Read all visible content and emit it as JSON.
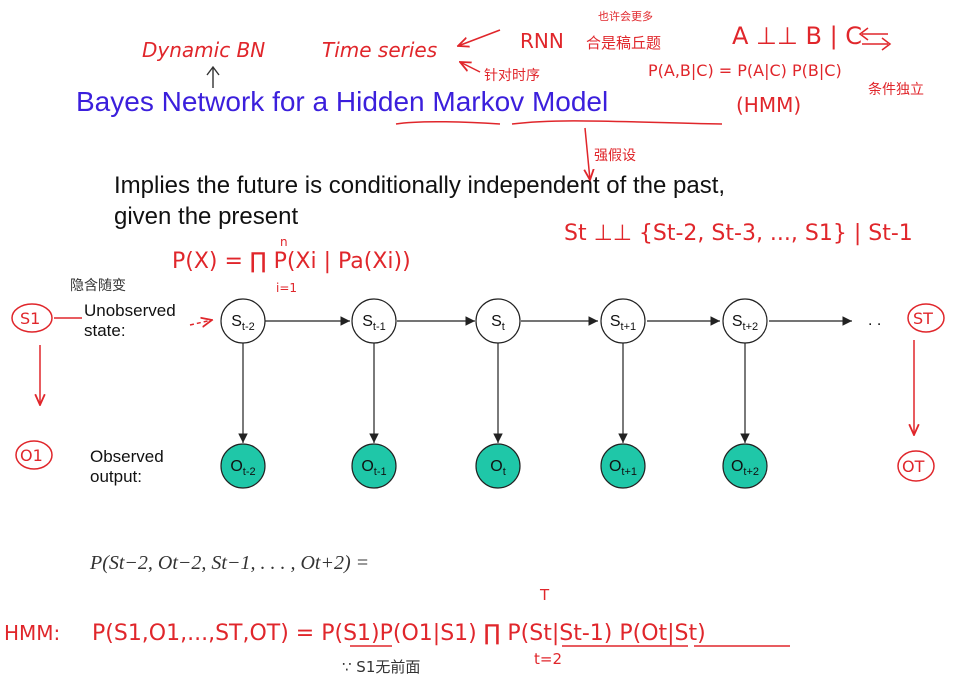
{
  "title": "Bayes Network for a Hidden Markov Model",
  "statement": {
    "line1": "Implies the future is conditionally independent of the past,",
    "line2": "given the present"
  },
  "labels": {
    "unobserved_line1": "Unobserved",
    "unobserved_line2": "state:",
    "observed_line1": "Observed",
    "observed_line2": "output:",
    "ellipsis": ". ."
  },
  "states": [
    {
      "base": "S",
      "sub": "t-2"
    },
    {
      "base": "S",
      "sub": "t-1"
    },
    {
      "base": "S",
      "sub": "t"
    },
    {
      "base": "S",
      "sub": "t+1"
    },
    {
      "base": "S",
      "sub": "t+2"
    }
  ],
  "outputs": [
    {
      "base": "O",
      "sub": "t-2"
    },
    {
      "base": "O",
      "sub": "t-1"
    },
    {
      "base": "O",
      "sub": "t"
    },
    {
      "base": "O",
      "sub": "t+1"
    },
    {
      "base": "O",
      "sub": "t+2"
    }
  ],
  "formula": "P(St−2, Ot−2, St−1, . . . , Ot+2) =",
  "colors": {
    "title": "#3b1fdc",
    "observed_node": "#1fc7a8",
    "handwriting": "#e0262b"
  },
  "handwritten": {
    "dynamic_bn": "Dynamic BN",
    "time_series": "Time series",
    "rnn": "RNN",
    "rnn_note": "合是稿丘题",
    "rnn_note_top": "也许会更多",
    "time_order": "针对时序",
    "independence": "A ⊥⊥ B | C",
    "independence_expansion": "P(A,B|C) = P(A|C) P(B|C)",
    "conditional_indep_note": "条件独立",
    "hmm_abbrev": "(HMM)",
    "strong_assumption": "强假设",
    "markov_property": "St ⊥⊥ {St-2, St-3, ..., S1} | St-1",
    "factorization": "P(X) = ∏ P(Xi | Pa(Xi))",
    "factorization_upper": "n",
    "factorization_lower": "i=1",
    "hidden_variable": "隐含随变",
    "s1": "S1",
    "o1": "O1",
    "sT": "ST",
    "oT": "OT",
    "hmm_label": "HMM:",
    "hmm_factorization": "P(S1,O1,...,ST,OT) = P(S1)P(O1|S1) ∏ P(St|St-1) P(Ot|St)",
    "product_upper": "T",
    "product_lower": "t=2",
    "s1_note": "∵ S1无前面"
  }
}
